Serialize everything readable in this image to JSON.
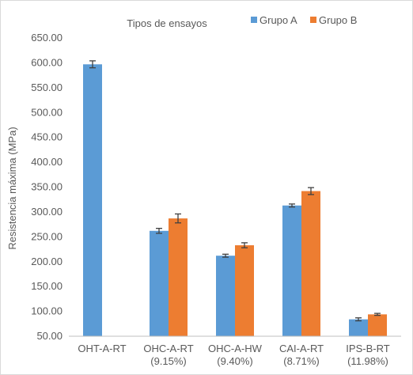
{
  "chart_data": {
    "type": "bar",
    "title": "Tipos de ensayos",
    "xlabel": "",
    "ylabel": "Resistencia máxima (MPa)",
    "ylim": [
      50,
      650
    ],
    "ytick_step": 50,
    "ytick_labels": [
      "50.00",
      "100.00",
      "150.00",
      "200.00",
      "250.00",
      "300.00",
      "350.00",
      "400.00",
      "450.00",
      "500.00",
      "550.00",
      "600.00",
      "650.00"
    ],
    "grid": false,
    "legend_position": "top",
    "categories": [
      [
        "OHT-A-RT",
        ""
      ],
      [
        "OHC-A-RT",
        "(9.15%)"
      ],
      [
        "OHC-A-HW",
        "(9.40%)"
      ],
      [
        "CAI-A-RT",
        "(8.71%)"
      ],
      [
        "IPS-B-RT",
        "(11.98%)"
      ]
    ],
    "series": [
      {
        "name": "Grupo A",
        "color": "#5b9bd5",
        "values": [
          597,
          262,
          212,
          313,
          84
        ],
        "errors": [
          7,
          5,
          3,
          3,
          3
        ]
      },
      {
        "name": "Grupo B",
        "color": "#ed7d31",
        "values": [
          null,
          287,
          233,
          342,
          94
        ],
        "errors": [
          null,
          9,
          5,
          7,
          2
        ]
      }
    ]
  }
}
